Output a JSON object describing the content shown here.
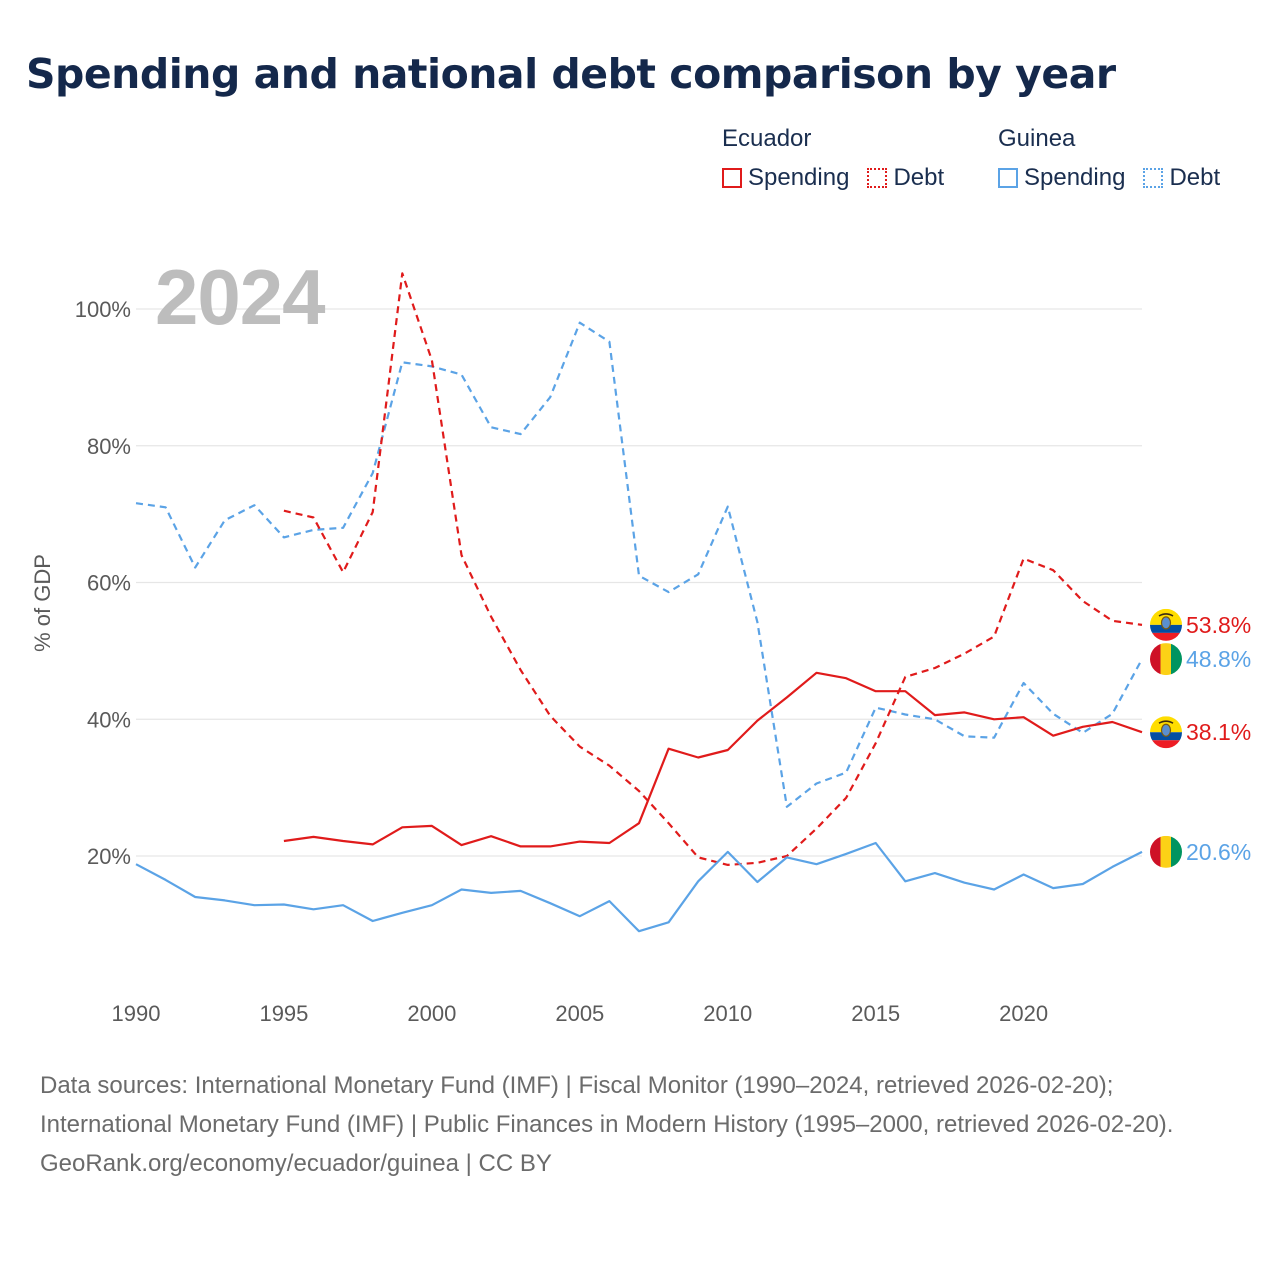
{
  "title": "Spending and national debt comparison by year",
  "year": "2024",
  "legend": {
    "ecuador": {
      "country": "Ecuador",
      "spending": "Spending",
      "debt": "Debt",
      "color": "#e01b1b"
    },
    "guinea": {
      "country": "Guinea",
      "spending": "Spending",
      "debt": "Debt",
      "color": "#5ba3e6"
    }
  },
  "source": {
    "line1": "Data sources: International Monetary Fund (IMF) | Fiscal Monitor (1990–2024, retrieved 2026-02-20); International Monetary Fund (IMF) | Public Finances in Modern History (1995–2000, retrieved 2026-02-20).",
    "line2": "GeoRank.org/economy/ecuador/guinea | CC BY"
  },
  "chart_data": {
    "type": "line",
    "ylabel": "% of GDP",
    "xlabel": "",
    "xlim": [
      1990,
      2024
    ],
    "ylim": [
      0,
      110
    ],
    "x_ticks": [
      1990,
      1995,
      2000,
      2005,
      2010,
      2015,
      2020
    ],
    "y_ticks": [
      20,
      40,
      60,
      80,
      100
    ],
    "y_tick_labels": [
      "20%",
      "40%",
      "60%",
      "80%",
      "100%"
    ],
    "grid": true,
    "series": [
      {
        "name": "Ecuador Debt",
        "country": "Ecuador",
        "metric": "Debt",
        "style": "dashed",
        "color": "#e01b1b",
        "end_label": "53.8%",
        "x": [
          1995,
          1996,
          1997,
          1998,
          1999,
          2000,
          2001,
          2002,
          2003,
          2004,
          2005,
          2006,
          2007,
          2008,
          2009,
          2010,
          2011,
          2012,
          2013,
          2014,
          2015,
          2016,
          2017,
          2018,
          2019,
          2020,
          2021,
          2022,
          2023,
          2024
        ],
        "values": [
          70.5,
          69.5,
          61.5,
          70.3,
          105.2,
          92.5,
          64.0,
          55.0,
          47.2,
          40.5,
          36.0,
          33.2,
          29.5,
          24.8,
          19.8,
          18.7,
          19.0,
          20.0,
          24.0,
          28.5,
          36.5,
          46.2,
          47.5,
          49.6,
          52.1,
          63.5,
          61.8,
          57.3,
          54.4,
          53.8
        ]
      },
      {
        "name": "Ecuador Spending",
        "country": "Ecuador",
        "metric": "Spending",
        "style": "solid",
        "color": "#e01b1b",
        "end_label": "38.1%",
        "x": [
          1995,
          1996,
          1997,
          1998,
          1999,
          2000,
          2001,
          2002,
          2003,
          2004,
          2005,
          2006,
          2007,
          2008,
          2009,
          2010,
          2011,
          2012,
          2013,
          2014,
          2015,
          2016,
          2017,
          2018,
          2019,
          2020,
          2021,
          2022,
          2023,
          2024
        ],
        "values": [
          22.2,
          22.8,
          22.2,
          21.7,
          24.2,
          24.4,
          21.6,
          22.9,
          21.4,
          21.4,
          22.1,
          21.9,
          24.8,
          35.7,
          34.4,
          35.5,
          39.8,
          43.2,
          46.8,
          46.0,
          44.1,
          44.1,
          40.6,
          41.0,
          40.0,
          40.3,
          37.6,
          38.9,
          39.6,
          38.1
        ]
      },
      {
        "name": "Guinea Debt",
        "country": "Guinea",
        "metric": "Debt",
        "style": "dashed",
        "color": "#5ba3e6",
        "end_label": "48.8%",
        "x": [
          1990,
          1991,
          1992,
          1993,
          1994,
          1995,
          1996,
          1997,
          1998,
          1999,
          2000,
          2001,
          2002,
          2003,
          2004,
          2005,
          2006,
          2007,
          2008,
          2009,
          2010,
          2011,
          2012,
          2013,
          2014,
          2015,
          2016,
          2017,
          2018,
          2019,
          2020,
          2021,
          2022,
          2023,
          2024
        ],
        "values": [
          71.6,
          71.0,
          62.2,
          69.1,
          71.3,
          66.6,
          67.7,
          68.0,
          76.0,
          92.2,
          91.6,
          90.4,
          82.7,
          81.7,
          87.1,
          98.0,
          95.2,
          61.0,
          58.6,
          61.2,
          71.1,
          54.2,
          27.2,
          30.6,
          32.2,
          41.7,
          40.7,
          40.0,
          37.5,
          37.3,
          45.3,
          40.8,
          38.0,
          40.8,
          48.8
        ]
      },
      {
        "name": "Guinea Spending",
        "country": "Guinea",
        "metric": "Spending",
        "style": "solid",
        "color": "#5ba3e6",
        "end_label": "20.6%",
        "x": [
          1990,
          1991,
          1992,
          1993,
          1994,
          1995,
          1996,
          1997,
          1998,
          1999,
          2000,
          2001,
          2002,
          2003,
          2004,
          2005,
          2006,
          2007,
          2008,
          2009,
          2010,
          2011,
          2012,
          2013,
          2014,
          2015,
          2016,
          2017,
          2018,
          2019,
          2020,
          2021,
          2022,
          2023,
          2024
        ],
        "values": [
          18.8,
          16.5,
          14.0,
          13.5,
          12.8,
          12.9,
          12.2,
          12.8,
          10.5,
          11.7,
          12.8,
          15.1,
          14.6,
          14.9,
          13.1,
          11.2,
          13.4,
          9.0,
          10.3,
          16.3,
          20.6,
          16.2,
          19.8,
          18.8,
          20.3,
          21.9,
          16.3,
          17.5,
          16.1,
          15.1,
          17.3,
          15.3,
          15.9,
          18.4,
          20.6
        ]
      }
    ]
  }
}
